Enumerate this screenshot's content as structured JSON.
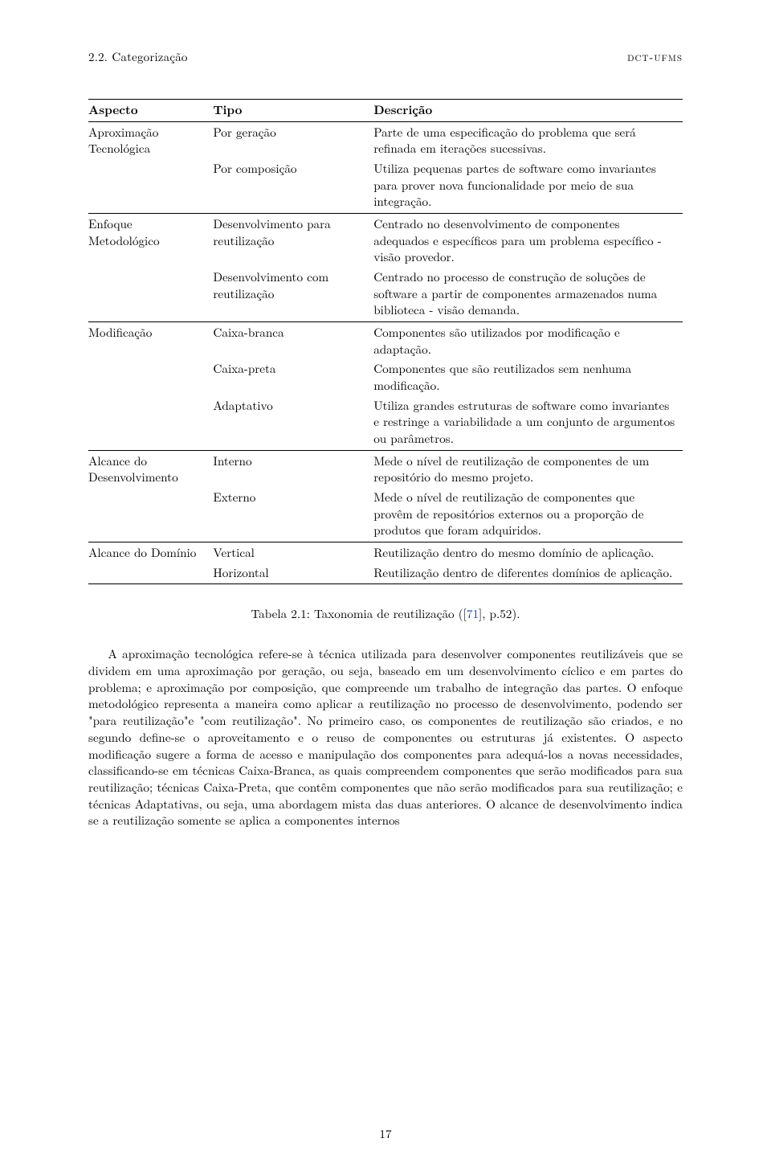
{
  "colors": {
    "text": "#000000",
    "background": "#ffffff",
    "citation_link": "#0047c3",
    "rule": "#000000"
  },
  "typography": {
    "body_font_pt": 11,
    "body_line_height": 1.36,
    "font_family": "Latin Modern / Computer Modern (serif)"
  },
  "running_head": {
    "left": "2.2.  Categorização",
    "right": "dct-ufms"
  },
  "table": {
    "headers": [
      "Aspecto",
      "Tipo",
      "Descrição"
    ],
    "column_widths_pct": [
      21,
      27,
      52
    ],
    "groups": [
      {
        "aspect": "Aproximação Tecnológica",
        "rows": [
          {
            "type": "Por geração",
            "desc": "Parte de uma especificação do problema que será refinada em iterações sucessivas."
          },
          {
            "type": "Por composição",
            "desc": "Utiliza pequenas partes de software como invariantes para prover nova funcionalidade por meio de sua integração."
          }
        ]
      },
      {
        "aspect": "Enfoque Metodológico",
        "rows": [
          {
            "type": "Desenvolvimento para reutilização",
            "desc": "Centrado no desenvolvimento de componentes adequados e específicos para um problema específico - visão provedor."
          },
          {
            "type": "Desenvolvimento com reutilização",
            "desc": "Centrado no processo de construção de soluções de software a partir de componentes armazenados numa biblioteca - visão demanda."
          }
        ]
      },
      {
        "aspect": "Modificação",
        "rows": [
          {
            "type": "Caixa-branca",
            "desc": "Componentes são utilizados por modificação e adaptação."
          },
          {
            "type": "Caixa-preta",
            "desc": "Componentes que são reutilizados sem nenhuma modificação."
          },
          {
            "type": "Adaptativo",
            "desc": "Utiliza grandes estruturas de software como invariantes e restringe a variabilidade a um conjunto de argumentos ou parâmetros."
          }
        ]
      },
      {
        "aspect": "Alcance do Desenvolvimento",
        "rows": [
          {
            "type": "Interno",
            "desc": "Mede o nível de reutilização de componentes de um repositório do mesmo projeto."
          },
          {
            "type": "Externo",
            "desc": "Mede o nível de reutilização de componentes que provêm de repositórios externos ou a proporção de produtos que foram adquiridos."
          }
        ]
      },
      {
        "aspect": "Alcance do Domínio",
        "rows": [
          {
            "type": "Vertical",
            "desc": "Reutilização dentro do mesmo domínio de aplicação."
          },
          {
            "type": "Horizontal",
            "desc": "Reutilização dentro de diferentes domínios de aplicação."
          }
        ]
      }
    ]
  },
  "caption": {
    "prefix": "Tabela 2.1: Taxonomia de reutilização ([",
    "cite": "71",
    "suffix": "], p.52)."
  },
  "paragraph": "A aproximação tecnológica refere-se à técnica utilizada para desenvolver componentes reutilizáveis que se dividem em uma aproximação por geração, ou seja, baseado em um desenvolvimento cíclico e em partes do problema; e aproximação por composição, que compreende um trabalho de integração das partes. O enfoque metodológico representa a maneira como aplicar a reutilização no processo de desenvolvimento, podendo ser \"para reutilização\"e \"com reutilização\". No primeiro caso, os componentes de reutilização são criados, e no segundo define-se o aproveitamento e o reuso de componentes ou estruturas já existentes. O aspecto modificação sugere a forma de acesso e manipulação dos componentes para adequá-los a novas necessidades, classificando-se em técnicas Caixa-Branca, as quais compreendem componentes que serão modificados para sua reutilização; técnicas Caixa-Preta, que contêm componentes que não serão modificados para sua reutilização; e técnicas Adaptativas, ou seja, uma abordagem mista das duas anteriores. O alcance de desenvolvimento indica se a reutilização somente se aplica a componentes internos",
  "page_number": "17"
}
